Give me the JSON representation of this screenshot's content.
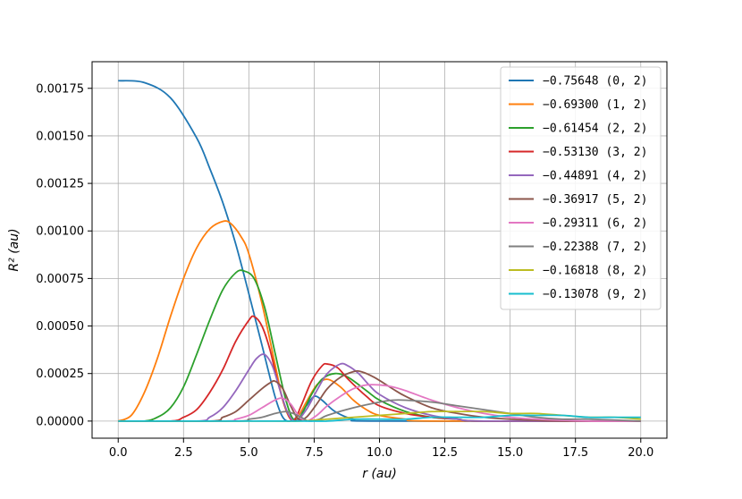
{
  "chart_data": {
    "type": "line",
    "xlabel": "r (au)",
    "ylabel": "R² (au)",
    "xlim": [
      -1.0,
      21.0
    ],
    "ylim": [
      -9e-05,
      0.00189
    ],
    "x_ticks": [
      0.0,
      2.5,
      5.0,
      7.5,
      10.0,
      12.5,
      15.0,
      17.5,
      20.0
    ],
    "x_tick_labels": [
      "0.0",
      "2.5",
      "5.0",
      "7.5",
      "10.0",
      "12.5",
      "15.0",
      "17.5",
      "20.0"
    ],
    "y_ticks": [
      0,
      0.00025,
      0.0005,
      0.00075,
      0.001,
      0.00125,
      0.0015,
      0.00175
    ],
    "y_tick_labels": [
      "0.00000",
      "0.00025",
      "0.00050",
      "0.00075",
      "0.00100",
      "0.00125",
      "0.00150",
      "0.00175"
    ],
    "grid": true,
    "legend_position": "top-right",
    "series": [
      {
        "name": "−0.75648 (0, 2)",
        "color": "#1f77b4",
        "points": [
          [
            0,
            0.00179
          ],
          [
            1,
            0.00178
          ],
          [
            2,
            0.0017
          ],
          [
            3,
            0.00149
          ],
          [
            3.5,
            0.00133
          ],
          [
            4,
            0.00115
          ],
          [
            4.5,
            0.00093
          ],
          [
            5,
            0.00067
          ],
          [
            5.5,
            0.0004
          ],
          [
            6,
            0.00013
          ],
          [
            6.3,
            2e-05
          ],
          [
            6.6,
            0
          ],
          [
            6.9,
            3e-05
          ],
          [
            7.2,
            8e-05
          ],
          [
            7.5,
            0.00013
          ],
          [
            7.8,
            0.00011
          ],
          [
            8.3,
            5e-05
          ],
          [
            9,
            1e-05
          ],
          [
            10,
            0
          ],
          [
            20,
            0
          ]
        ]
      },
      {
        "name": "−0.69300 (1, 2)",
        "color": "#ff7f0e",
        "points": [
          [
            0,
            0
          ],
          [
            0.5,
            3e-05
          ],
          [
            1,
            0.00015
          ],
          [
            1.5,
            0.00033
          ],
          [
            2,
            0.00055
          ],
          [
            2.5,
            0.00075
          ],
          [
            3,
            0.00091
          ],
          [
            3.5,
            0.00101
          ],
          [
            4,
            0.00105
          ],
          [
            4.3,
            0.00104
          ],
          [
            4.7,
            0.00097
          ],
          [
            5,
            0.00088
          ],
          [
            5.5,
            0.00062
          ],
          [
            6,
            0.0003
          ],
          [
            6.3,
            0.00011
          ],
          [
            6.6,
            1e-05
          ],
          [
            6.9,
            3e-05
          ],
          [
            7.2,
            0.0001
          ],
          [
            7.6,
            0.00019
          ],
          [
            8,
            0.00022
          ],
          [
            8.5,
            0.00018
          ],
          [
            9,
            0.00011
          ],
          [
            9.5,
            6e-05
          ],
          [
            10,
            3e-05
          ],
          [
            11,
            1e-05
          ],
          [
            12,
            0
          ],
          [
            20,
            0
          ]
        ]
      },
      {
        "name": "−0.61454 (2, 2)",
        "color": "#2ca02c",
        "points": [
          [
            0,
            0
          ],
          [
            1,
            0
          ],
          [
            1.5,
            2e-05
          ],
          [
            2,
            7e-05
          ],
          [
            2.5,
            0.00018
          ],
          [
            3,
            0.00035
          ],
          [
            3.5,
            0.00053
          ],
          [
            4,
            0.00069
          ],
          [
            4.5,
            0.00078
          ],
          [
            4.8,
            0.00079
          ],
          [
            5.2,
            0.00075
          ],
          [
            5.6,
            0.0006
          ],
          [
            6,
            0.00036
          ],
          [
            6.4,
            0.00012
          ],
          [
            6.7,
            1e-05
          ],
          [
            7,
            3e-05
          ],
          [
            7.4,
            0.00014
          ],
          [
            7.8,
            0.00022
          ],
          [
            8.3,
            0.00025
          ],
          [
            8.8,
            0.00023
          ],
          [
            9.5,
            0.00016
          ],
          [
            10,
            0.00011
          ],
          [
            11,
            5e-05
          ],
          [
            12,
            2e-05
          ],
          [
            13,
            1e-05
          ],
          [
            14,
            0
          ],
          [
            20,
            0
          ]
        ]
      },
      {
        "name": "−0.53130 (3, 2)",
        "color": "#d62728",
        "points": [
          [
            0,
            0
          ],
          [
            2,
            0
          ],
          [
            2.5,
            2e-05
          ],
          [
            3,
            6e-05
          ],
          [
            3.5,
            0.00015
          ],
          [
            4,
            0.00027
          ],
          [
            4.5,
            0.00042
          ],
          [
            5,
            0.00053
          ],
          [
            5.2,
            0.00055
          ],
          [
            5.5,
            0.0005
          ],
          [
            5.8,
            0.00038
          ],
          [
            6.1,
            0.00021
          ],
          [
            6.4,
            7e-05
          ],
          [
            6.7,
            0
          ],
          [
            7,
            8e-05
          ],
          [
            7.4,
            0.00021
          ],
          [
            7.8,
            0.00029
          ],
          [
            8,
            0.0003
          ],
          [
            8.4,
            0.00028
          ],
          [
            8.8,
            0.00022
          ],
          [
            9.5,
            0.00013
          ],
          [
            10,
            8e-05
          ],
          [
            11,
            4e-05
          ],
          [
            12,
            2e-05
          ],
          [
            13,
            1e-05
          ],
          [
            14,
            0
          ],
          [
            20,
            0
          ]
        ]
      },
      {
        "name": "−0.44891 (4, 2)",
        "color": "#9467bd",
        "points": [
          [
            0,
            0
          ],
          [
            3,
            0
          ],
          [
            3.5,
            2e-05
          ],
          [
            4,
            7e-05
          ],
          [
            4.5,
            0.00016
          ],
          [
            5,
            0.00027
          ],
          [
            5.3,
            0.00033
          ],
          [
            5.6,
            0.00035
          ],
          [
            5.9,
            0.00029
          ],
          [
            6.2,
            0.00016
          ],
          [
            6.5,
            4e-05
          ],
          [
            6.8,
            0
          ],
          [
            7.2,
            6e-05
          ],
          [
            7.6,
            0.00016
          ],
          [
            8,
            0.00025
          ],
          [
            8.5,
            0.0003
          ],
          [
            8.8,
            0.00029
          ],
          [
            9.2,
            0.00025
          ],
          [
            9.6,
            0.00019
          ],
          [
            10,
            0.00014
          ],
          [
            11,
            7e-05
          ],
          [
            12,
            3e-05
          ],
          [
            13,
            1e-05
          ],
          [
            14,
            0
          ],
          [
            20,
            0
          ]
        ]
      },
      {
        "name": "−0.36917 (5, 2)",
        "color": "#8c564b",
        "points": [
          [
            0,
            0
          ],
          [
            3.5,
            0
          ],
          [
            4,
            2e-05
          ],
          [
            4.5,
            5e-05
          ],
          [
            5,
            0.00011
          ],
          [
            5.5,
            0.00017
          ],
          [
            5.8,
            0.0002
          ],
          [
            6,
            0.00021
          ],
          [
            6.3,
            0.00017
          ],
          [
            6.6,
            8e-05
          ],
          [
            6.9,
            1e-05
          ],
          [
            7.2,
            2e-05
          ],
          [
            7.6,
            9e-05
          ],
          [
            8,
            0.00017
          ],
          [
            8.5,
            0.00023
          ],
          [
            9,
            0.00026
          ],
          [
            9.3,
            0.00026
          ],
          [
            9.8,
            0.00023
          ],
          [
            10.5,
            0.00017
          ],
          [
            11,
            0.00013
          ],
          [
            12,
            7e-05
          ],
          [
            13,
            4e-05
          ],
          [
            14,
            2e-05
          ],
          [
            15,
            1e-05
          ],
          [
            17,
            0
          ],
          [
            20,
            0
          ]
        ]
      },
      {
        "name": "−0.29311 (6, 2)",
        "color": "#e377c2",
        "points": [
          [
            0,
            0
          ],
          [
            4,
            0
          ],
          [
            4.5,
            1e-05
          ],
          [
            5,
            3e-05
          ],
          [
            5.5,
            7e-05
          ],
          [
            6,
            0.00011
          ],
          [
            6.3,
            0.00012
          ],
          [
            6.6,
            9e-05
          ],
          [
            6.9,
            3e-05
          ],
          [
            7.2,
            0
          ],
          [
            7.6,
            3e-05
          ],
          [
            8,
            8e-05
          ],
          [
            8.5,
            0.00013
          ],
          [
            9,
            0.00017
          ],
          [
            9.5,
            0.00019
          ],
          [
            10,
            0.00019
          ],
          [
            10.5,
            0.00018
          ],
          [
            11,
            0.00016
          ],
          [
            12,
            0.00011
          ],
          [
            13,
            7e-05
          ],
          [
            14,
            4e-05
          ],
          [
            15,
            2e-05
          ],
          [
            16,
            1e-05
          ],
          [
            18,
            0
          ],
          [
            20,
            0
          ]
        ]
      },
      {
        "name": "−0.22388 (7, 2)",
        "color": "#7f7f7f",
        "points": [
          [
            0,
            0
          ],
          [
            4.5,
            0
          ],
          [
            5,
            1e-05
          ],
          [
            5.5,
            2e-05
          ],
          [
            6,
            4e-05
          ],
          [
            6.4,
            5e-05
          ],
          [
            6.7,
            4e-05
          ],
          [
            7,
            2e-05
          ],
          [
            7.3,
            0
          ],
          [
            7.7,
            1e-05
          ],
          [
            8,
            3e-05
          ],
          [
            9,
            7e-05
          ],
          [
            10,
            0.0001
          ],
          [
            10.5,
            0.00011
          ],
          [
            11,
            0.00011
          ],
          [
            12,
            0.0001
          ],
          [
            13,
            8e-05
          ],
          [
            14,
            6e-05
          ],
          [
            15,
            4e-05
          ],
          [
            16,
            2e-05
          ],
          [
            17,
            1e-05
          ],
          [
            18,
            1e-05
          ],
          [
            20,
            0
          ]
        ]
      },
      {
        "name": "−0.16818 (8, 2)",
        "color": "#bcbd22",
        "points": [
          [
            0,
            0
          ],
          [
            6,
            0
          ],
          [
            7,
            0
          ],
          [
            8,
            1e-05
          ],
          [
            9,
            2e-05
          ],
          [
            10,
            3e-05
          ],
          [
            11,
            4e-05
          ],
          [
            12,
            5e-05
          ],
          [
            13,
            5e-05
          ],
          [
            14,
            5e-05
          ],
          [
            15,
            4e-05
          ],
          [
            16,
            4e-05
          ],
          [
            17,
            3e-05
          ],
          [
            18,
            2e-05
          ],
          [
            19,
            2e-05
          ],
          [
            20,
            1e-05
          ]
        ]
      },
      {
        "name": "−0.13078 (9, 2)",
        "color": "#17becf",
        "points": [
          [
            0,
            0
          ],
          [
            7,
            0
          ],
          [
            8,
            0
          ],
          [
            9,
            1e-05
          ],
          [
            10,
            1e-05
          ],
          [
            11,
            1e-05
          ],
          [
            12,
            2e-05
          ],
          [
            13,
            2e-05
          ],
          [
            14,
            2e-05
          ],
          [
            15,
            3e-05
          ],
          [
            16,
            3e-05
          ],
          [
            17,
            3e-05
          ],
          [
            18,
            2e-05
          ],
          [
            19,
            2e-05
          ],
          [
            20,
            2e-05
          ]
        ]
      }
    ]
  }
}
